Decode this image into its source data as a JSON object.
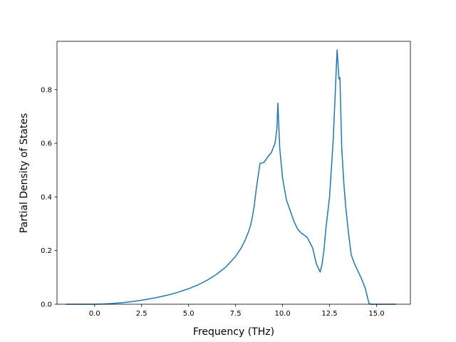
{
  "chart_data": {
    "type": "line",
    "title": "",
    "xlabel": "Frequency (THz)",
    "ylabel": "Partial Density of States",
    "xlim": [
      -2.0,
      16.8
    ],
    "ylim": [
      0.0,
      0.98
    ],
    "xticks": [
      0.0,
      2.5,
      5.0,
      7.5,
      10.0,
      12.5,
      15.0
    ],
    "xtick_labels": [
      "0.0",
      "2.5",
      "5.0",
      "7.5",
      "10.0",
      "12.5",
      "15.0"
    ],
    "yticks": [
      0.0,
      0.2,
      0.4,
      0.6,
      0.8
    ],
    "ytick_labels": [
      "0.0",
      "0.2",
      "0.4",
      "0.6",
      "0.8"
    ],
    "grid": false,
    "line_color": "#1f77b4",
    "series": [
      {
        "x": [
          -1.5,
          -1.0,
          -0.5,
          0.0,
          0.5,
          1.0,
          1.5,
          2.0,
          2.5,
          3.0,
          3.5,
          4.0,
          4.5,
          5.0,
          5.5,
          6.0,
          6.5,
          7.0,
          7.5,
          7.8,
          8.0,
          8.2,
          8.3,
          8.4,
          8.5,
          8.6,
          8.8,
          9.0,
          9.2,
          9.4,
          9.6,
          9.7,
          9.75,
          9.85,
          10.0,
          10.2,
          10.4,
          10.6,
          10.8,
          11.0,
          11.3,
          11.6,
          11.8,
          12.0,
          12.1,
          12.2,
          12.3,
          12.5,
          12.7,
          12.9,
          13.0,
          13.05,
          13.15,
          13.25,
          13.35,
          13.5,
          13.65,
          13.8,
          14.0,
          14.2,
          14.4,
          14.5,
          14.6,
          14.7,
          15.0,
          15.5,
          16.0
        ],
        "y": [
          0.0,
          0.0,
          0.0,
          0.0,
          0.001,
          0.003,
          0.006,
          0.01,
          0.015,
          0.021,
          0.028,
          0.036,
          0.046,
          0.058,
          0.072,
          0.09,
          0.112,
          0.14,
          0.178,
          0.21,
          0.238,
          0.272,
          0.295,
          0.328,
          0.37,
          0.43,
          0.525,
          0.528,
          0.548,
          0.565,
          0.6,
          0.655,
          0.75,
          0.58,
          0.47,
          0.39,
          0.35,
          0.31,
          0.28,
          0.265,
          0.25,
          0.21,
          0.15,
          0.12,
          0.15,
          0.2,
          0.28,
          0.4,
          0.62,
          0.948,
          0.84,
          0.845,
          0.58,
          0.46,
          0.37,
          0.27,
          0.185,
          0.155,
          0.125,
          0.095,
          0.06,
          0.03,
          0.003,
          0.0,
          0.0,
          0.0,
          0.0
        ]
      }
    ]
  }
}
